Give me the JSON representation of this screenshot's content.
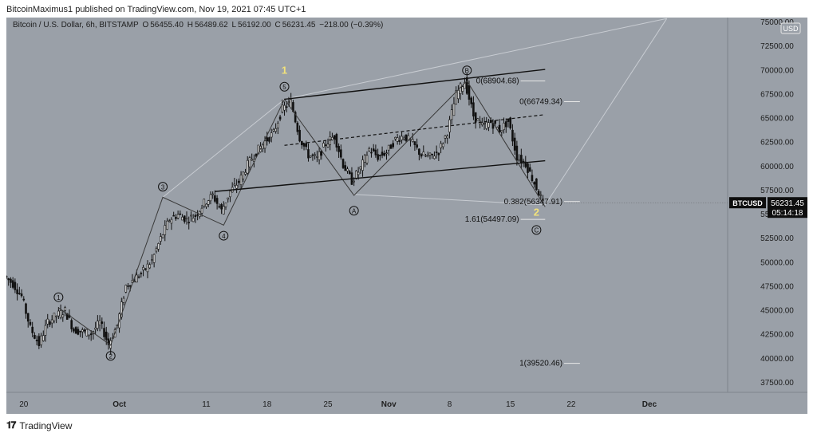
{
  "header": {
    "text": "BitcoinMaximus1 published on TradingView.com, Nov 19, 2021 07:45 UTC+1"
  },
  "symbol_info": {
    "name": "Bitcoin / U.S. Dollar, 6h, BITSTAMP",
    "o_label": "O",
    "o": "56455.40",
    "h_label": "H",
    "h": "56489.62",
    "l_label": "L",
    "l": "56192.00",
    "c_label": "C",
    "c": "56231.45",
    "change": "−218.00 (−0.39%)"
  },
  "currency_badge": "USD",
  "price_tag": {
    "symbol": "BTCUSD",
    "price": "56231.45",
    "countdown": "05:14:18"
  },
  "footer": {
    "brand": "TradingView"
  },
  "colors": {
    "background": "#9aa0a8",
    "ink": "#111111",
    "wave_label": "#f2e27a",
    "channel_ghost": "#c8ccd2"
  },
  "chart_data": {
    "type": "candlestick",
    "y_axis": {
      "range": [
        36500,
        75500
      ],
      "ticks": [
        37500,
        40000,
        42500,
        45000,
        47500,
        50000,
        52500,
        55000,
        57500,
        60000,
        62500,
        65000,
        67500,
        70000,
        72500,
        75000
      ],
      "tick_labels": [
        "37500.00",
        "40000.00",
        "42500.00",
        "45000.00",
        "47500.00",
        "50000.00",
        "52500.00",
        "55000.00",
        "57500.00",
        "60000.00",
        "62500.00",
        "65000.00",
        "67500.00",
        "70000.00",
        "72500.00",
        "75000.00"
      ]
    },
    "x_axis": {
      "range_days": [
        "2021-09-18",
        "2021-12-10"
      ],
      "ticks": [
        {
          "date": "2021-09-20",
          "label": "20"
        },
        {
          "date": "2021-10-01",
          "label": "Oct"
        },
        {
          "date": "2021-10-11",
          "label": "11"
        },
        {
          "date": "2021-10-18",
          "label": "18"
        },
        {
          "date": "2021-10-25",
          "label": "25"
        },
        {
          "date": "2021-11-01",
          "label": "Nov"
        },
        {
          "date": "2021-11-08",
          "label": "8"
        },
        {
          "date": "2021-11-15",
          "label": "15"
        },
        {
          "date": "2021-11-22",
          "label": "22"
        },
        {
          "date": "2021-12-01",
          "label": "Dec"
        }
      ]
    },
    "price_path": [
      [
        "2021-09-18",
        48600
      ],
      [
        "2021-09-19",
        47800
      ],
      [
        "2021-09-20",
        46500
      ],
      [
        "2021-09-21",
        43200
      ],
      [
        "2021-09-22",
        41500
      ],
      [
        "2021-09-23",
        43800
      ],
      [
        "2021-09-24",
        44500
      ],
      [
        "2021-09-25",
        45000
      ],
      [
        "2021-09-26",
        43000
      ],
      [
        "2021-09-27",
        42800
      ],
      [
        "2021-09-28",
        42600
      ],
      [
        "2021-09-29",
        43800
      ],
      [
        "2021-09-30",
        41500
      ],
      [
        "2021-10-01",
        43500
      ],
      [
        "2021-10-02",
        47600
      ],
      [
        "2021-10-03",
        48300
      ],
      [
        "2021-10-04",
        49100
      ],
      [
        "2021-10-05",
        50200
      ],
      [
        "2021-10-06",
        52500
      ],
      [
        "2021-10-07",
        54500
      ],
      [
        "2021-10-08",
        55000
      ],
      [
        "2021-10-09",
        54500
      ],
      [
        "2021-10-10",
        54900
      ],
      [
        "2021-10-11",
        56200
      ],
      [
        "2021-10-12",
        57000
      ],
      [
        "2021-10-13",
        55400
      ],
      [
        "2021-10-14",
        57400
      ],
      [
        "2021-10-15",
        58400
      ],
      [
        "2021-10-16",
        60200
      ],
      [
        "2021-10-17",
        61500
      ],
      [
        "2021-10-18",
        62600
      ],
      [
        "2021-10-19",
        63500
      ],
      [
        "2021-10-20",
        66000
      ],
      [
        "2021-10-21",
        66700
      ],
      [
        "2021-10-22",
        63000
      ],
      [
        "2021-10-23",
        61200
      ],
      [
        "2021-10-24",
        60800
      ],
      [
        "2021-10-25",
        62400
      ],
      [
        "2021-10-26",
        63200
      ],
      [
        "2021-10-27",
        60200
      ],
      [
        "2021-10-28",
        58500
      ],
      [
        "2021-10-29",
        59800
      ],
      [
        "2021-10-30",
        61800
      ],
      [
        "2021-10-31",
        61000
      ],
      [
        "2021-11-01",
        61500
      ],
      [
        "2021-11-02",
        62800
      ],
      [
        "2021-11-03",
        63200
      ],
      [
        "2021-11-04",
        62400
      ],
      [
        "2021-11-05",
        61200
      ],
      [
        "2021-11-06",
        61000
      ],
      [
        "2021-11-07",
        61600
      ],
      [
        "2021-11-08",
        63600
      ],
      [
        "2021-11-09",
        67500
      ],
      [
        "2021-11-10",
        68904
      ],
      [
        "2021-11-11",
        65300
      ],
      [
        "2021-11-12",
        64200
      ],
      [
        "2021-11-13",
        64600
      ],
      [
        "2021-11-14",
        63800
      ],
      [
        "2021-11-15",
        64700
      ],
      [
        "2021-11-16",
        61000
      ],
      [
        "2021-11-17",
        60300
      ],
      [
        "2021-11-18",
        58300
      ],
      [
        "2021-11-19",
        56231
      ]
    ],
    "wave_overlay": [
      [
        "2021-09-24",
        45300
      ],
      [
        "2021-09-30",
        41400
      ],
      [
        "2021-10-06",
        56800
      ],
      [
        "2021-10-13",
        53900
      ],
      [
        "2021-10-20",
        66999
      ],
      [
        "2021-10-28",
        57000
      ],
      [
        "2021-11-10",
        68904
      ],
      [
        "2021-11-19",
        55800
      ]
    ],
    "channel": {
      "upper": [
        [
          "2021-10-20",
          67000
        ],
        [
          "2021-11-19",
          70100
        ]
      ],
      "middle": [
        [
          "2021-10-20",
          62200
        ],
        [
          "2021-11-19",
          65400
        ]
      ],
      "lower": [
        [
          "2021-10-12",
          57400
        ],
        [
          "2021-11-19",
          60600
        ]
      ]
    },
    "wave_labels": [
      {
        "text": "1",
        "date": "2021-09-24",
        "price": 46400,
        "style": "circle"
      },
      {
        "text": "2",
        "date": "2021-09-30",
        "price": 40300,
        "style": "circle"
      },
      {
        "text": "3",
        "date": "2021-10-06",
        "price": 57900,
        "style": "circle"
      },
      {
        "text": "4",
        "date": "2021-10-13",
        "price": 52800,
        "style": "circle"
      },
      {
        "text": "5",
        "date": "2021-10-20",
        "price": 68300,
        "style": "circle"
      },
      {
        "text": "A",
        "date": "2021-10-28",
        "price": 55400,
        "style": "circle"
      },
      {
        "text": "B",
        "date": "2021-11-10",
        "price": 70000,
        "style": "circle"
      },
      {
        "text": "C",
        "date": "2021-11-18",
        "price": 53400,
        "style": "circle"
      },
      {
        "text": "1",
        "date": "2021-10-20",
        "price": 70000,
        "style": "plain-yellow"
      },
      {
        "text": "2",
        "date": "2021-11-18",
        "price": 55200,
        "style": "plain-yellow"
      }
    ],
    "fib_levels": [
      {
        "label": "0(68904.68)",
        "price": 68904.68,
        "x1": "2021-11-16",
        "x2": "2021-11-19"
      },
      {
        "label": "0(66749.34)",
        "price": 66749.34,
        "x1": "2021-11-21",
        "x2": "2021-11-23"
      },
      {
        "label": "0.382(56347.91)",
        "price": 56347.91,
        "x1": "2021-11-21",
        "x2": "2021-11-23"
      },
      {
        "label": "1.61(54497.09)",
        "price": 54497.09,
        "x1": "2021-11-16",
        "x2": "2021-11-19"
      },
      {
        "label": "1(39520.46)",
        "price": 39520.46,
        "x1": "2021-11-21",
        "x2": "2021-11-23"
      }
    ]
  }
}
